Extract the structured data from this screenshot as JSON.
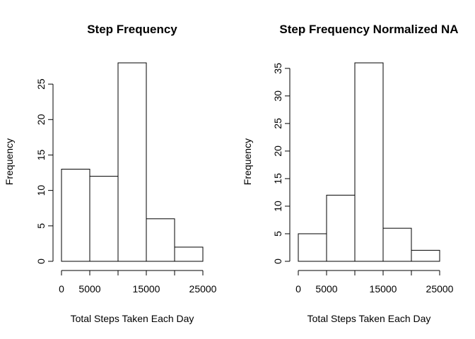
{
  "chart_data": [
    {
      "type": "bar",
      "title": "Step Frequency",
      "xlabel": "Total Steps Taken Each Day",
      "ylabel": "Frequency",
      "bins": [
        [
          0,
          5000
        ],
        [
          5000,
          10000
        ],
        [
          10000,
          15000
        ],
        [
          15000,
          20000
        ],
        [
          20000,
          25000
        ]
      ],
      "values": [
        13,
        12,
        28,
        6,
        2
      ],
      "xlim": [
        0,
        25000
      ],
      "ylim": [
        0,
        28
      ],
      "xticks": [
        0,
        5000,
        10000,
        15000,
        20000,
        25000
      ],
      "xtick_labels": [
        "0",
        "5000",
        "",
        "15000",
        "",
        "25000"
      ],
      "yticks": [
        0,
        5,
        10,
        15,
        20,
        25
      ],
      "ytick_labels": [
        "0",
        "5",
        "10",
        "15",
        "20",
        "25"
      ],
      "grid": false,
      "bar_fill": "#ffffff",
      "bar_stroke": "#000000"
    },
    {
      "type": "bar",
      "title": "Step Frequency Normalized NA",
      "xlabel": "Total Steps Taken Each Day",
      "ylabel": "Frequency",
      "bins": [
        [
          0,
          5000
        ],
        [
          5000,
          10000
        ],
        [
          10000,
          15000
        ],
        [
          15000,
          20000
        ],
        [
          20000,
          25000
        ]
      ],
      "values": [
        5,
        12,
        36,
        6,
        2
      ],
      "xlim": [
        0,
        25000
      ],
      "ylim": [
        0,
        36
      ],
      "xticks": [
        0,
        5000,
        10000,
        15000,
        20000,
        25000
      ],
      "xtick_labels": [
        "0",
        "5000",
        "",
        "15000",
        "",
        "25000"
      ],
      "yticks": [
        0,
        5,
        10,
        15,
        20,
        25,
        30,
        35
      ],
      "ytick_labels": [
        "0",
        "5",
        "10",
        "15",
        "20",
        "25",
        "30",
        "35"
      ],
      "grid": false,
      "bar_fill": "#ffffff",
      "bar_stroke": "#000000"
    }
  ]
}
